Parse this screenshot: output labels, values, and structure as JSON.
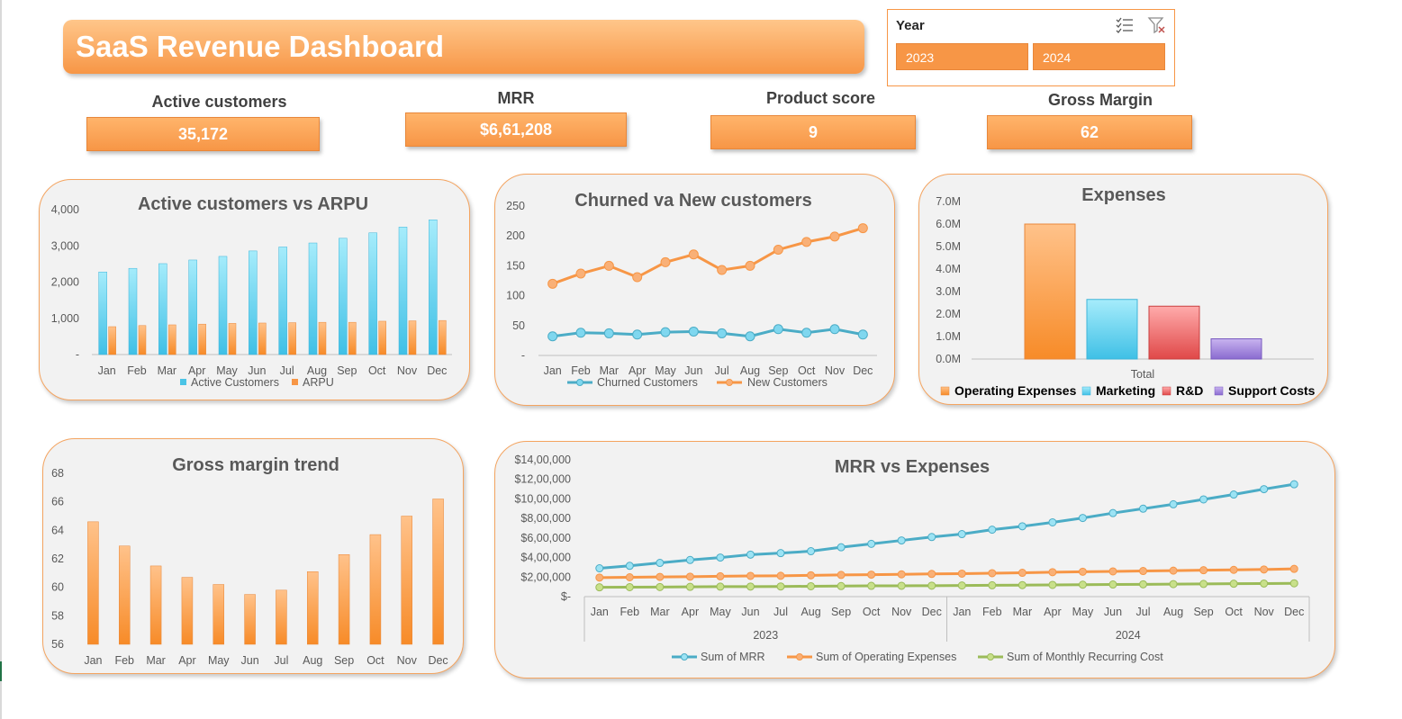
{
  "dashboard": {
    "title": "SaaS Revenue Dashboard"
  },
  "slicer": {
    "title": "Year",
    "options": [
      "2023",
      "2024"
    ],
    "icons": [
      "multi-select-icon",
      "clear-filter-icon"
    ]
  },
  "kpis": [
    {
      "label": "Active customers",
      "value": "35,172"
    },
    {
      "label": "MRR",
      "value": "$6,61,208"
    },
    {
      "label": "Product score",
      "value": "9"
    },
    {
      "label": "Gross Margin",
      "value": "62"
    }
  ],
  "colors": {
    "accent": "#f79646",
    "cyan": "#4bc4e6",
    "green": "#9bbb59",
    "blue_line": "#4bacc6",
    "red": "#e85c5c",
    "purple": "#9b7bd6"
  },
  "chart_data": [
    {
      "id": "active-vs-arpu",
      "type": "bar",
      "title": "Active customers vs ARPU",
      "categories": [
        "Jan",
        "Feb",
        "Mar",
        "Apr",
        "May",
        "Jun",
        "Jul",
        "Aug",
        "Sep",
        "Oct",
        "Nov",
        "Dec"
      ],
      "series": [
        {
          "name": "Active Customers",
          "values": [
            2280,
            2380,
            2510,
            2610,
            2710,
            2860,
            2970,
            3080,
            3210,
            3360,
            3520,
            3720
          ]
        },
        {
          "name": "ARPU",
          "values": [
            770,
            800,
            820,
            840,
            860,
            870,
            880,
            890,
            890,
            920,
            930,
            940
          ]
        }
      ],
      "ylim": [
        0,
        4000
      ],
      "yticks": [
        "-",
        "1,000",
        "2,000",
        "3,000",
        "4,000"
      ],
      "legend": "bottom"
    },
    {
      "id": "churned-vs-new",
      "type": "line",
      "title": "Churned va New customers",
      "categories": [
        "Jan",
        "Feb",
        "Mar",
        "Apr",
        "May",
        "Jun",
        "Jul",
        "Aug",
        "Sep",
        "Oct",
        "Nov",
        "Dec"
      ],
      "series": [
        {
          "name": "Churned Customers",
          "values": [
            32,
            38,
            37,
            35,
            39,
            40,
            37,
            32,
            44,
            38,
            44,
            35
          ]
        },
        {
          "name": "New Customers",
          "values": [
            120,
            137,
            150,
            131,
            156,
            169,
            143,
            150,
            177,
            190,
            199,
            213
          ]
        }
      ],
      "ylim": [
        0,
        250
      ],
      "yticks": [
        "-",
        "50",
        "100",
        "150",
        "200",
        "250"
      ],
      "legend": "bottom"
    },
    {
      "id": "expenses",
      "type": "bar",
      "title": "Expenses",
      "categories": [
        "Total"
      ],
      "series": [
        {
          "name": "Operating Expenses",
          "values": [
            6000000
          ]
        },
        {
          "name": "Marketing",
          "values": [
            2650000
          ]
        },
        {
          "name": "R&D",
          "values": [
            2350000
          ]
        },
        {
          "name": "Support Costs",
          "values": [
            900000
          ]
        }
      ],
      "ylim": [
        0,
        7000000
      ],
      "yticks": [
        "0.0M",
        "1.0M",
        "2.0M",
        "3.0M",
        "4.0M",
        "5.0M",
        "6.0M",
        "7.0M"
      ],
      "legend": "bottom"
    },
    {
      "id": "gross-margin-trend",
      "type": "bar",
      "title": "Gross margin trend",
      "categories": [
        "Jan",
        "Feb",
        "Mar",
        "Apr",
        "May",
        "Jun",
        "Jul",
        "Aug",
        "Sep",
        "Oct",
        "Nov",
        "Dec"
      ],
      "series": [
        {
          "values": [
            64.6,
            62.9,
            61.5,
            60.7,
            60.2,
            59.5,
            59.8,
            61.1,
            62.3,
            63.7,
            65.0,
            66.2
          ]
        }
      ],
      "ylim": [
        56,
        68
      ],
      "yticks": [
        "56",
        "58",
        "60",
        "62",
        "64",
        "66",
        "68"
      ]
    },
    {
      "id": "mrr-vs-expenses",
      "type": "line",
      "title": "MRR vs Expenses",
      "categories": [
        "Jan",
        "Feb",
        "Mar",
        "Apr",
        "May",
        "Jun",
        "Jul",
        "Aug",
        "Sep",
        "Oct",
        "Nov",
        "Dec",
        "Jan",
        "Feb",
        "Mar",
        "Apr",
        "May",
        "Jun",
        "Jul",
        "Aug",
        "Sep",
        "Oct",
        "Nov",
        "Dec"
      ],
      "groups": [
        "2023",
        "2024"
      ],
      "series": [
        {
          "name": "Sum of MRR",
          "values": [
            290000,
            315000,
            345000,
            375000,
            400000,
            430000,
            445000,
            465000,
            505000,
            540000,
            575000,
            610000,
            640000,
            685000,
            720000,
            760000,
            805000,
            855000,
            900000,
            945000,
            995000,
            1045000,
            1100000,
            1150000
          ]
        },
        {
          "name": "Sum of Operating Expenses",
          "values": [
            195000,
            198000,
            202000,
            204000,
            208000,
            212000,
            213000,
            218000,
            222000,
            225000,
            228000,
            232000,
            235000,
            240000,
            244000,
            250000,
            255000,
            258000,
            262000,
            266000,
            270000,
            274000,
            278000,
            284000
          ]
        },
        {
          "name": "Sum of Monthly Recurring Cost",
          "values": [
            95000,
            97000,
            98000,
            100000,
            102000,
            103000,
            104000,
            106000,
            108000,
            110000,
            111000,
            112000,
            114000,
            116000,
            118000,
            120000,
            122000,
            124000,
            126000,
            128000,
            130000,
            132000,
            134000,
            136000
          ]
        }
      ],
      "ylim": [
        0,
        1400000
      ],
      "yticks": [
        "$-",
        "$2,00,000",
        "$4,00,000",
        "$6,00,000",
        "$8,00,000",
        "$10,00,000",
        "$12,00,000",
        "$14,00,000"
      ],
      "legend": "bottom"
    }
  ]
}
